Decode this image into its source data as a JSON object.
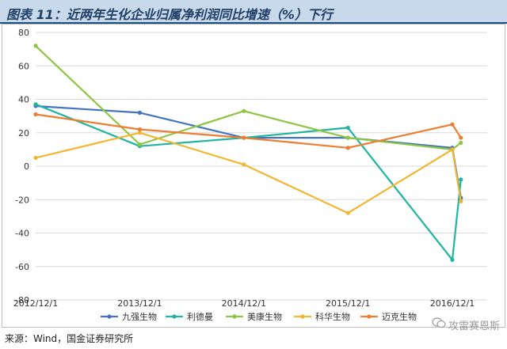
{
  "header": {
    "title": "图表 11：近两年生化企业归属净利润同比增速（%）下行"
  },
  "footer": {
    "source": "来源：Wind，国金证券研究所",
    "watermark": "攻雷赛恩斯"
  },
  "colors": {
    "title_bg": "#c8d9ec",
    "grid": "#d9d9d9"
  },
  "chart_data": {
    "type": "line",
    "title": "",
    "xlabel": "",
    "ylabel": "",
    "ylim": [
      -80,
      80
    ],
    "yticks": [
      -80,
      -60,
      -40,
      -20,
      0,
      20,
      40,
      60,
      80
    ],
    "grid": true,
    "legend_position": "bottom",
    "x_tick_labels": [
      "2012/12/1",
      "2013/12/1",
      "2014/12/1",
      "2015/12/1",
      "2016/12/1"
    ],
    "x": [
      "2012-12-01",
      "2013-12-01",
      "2014-12-01",
      "2015-12-01",
      "2016-12-01",
      "2016-12-31"
    ],
    "series": [
      {
        "name": "九强生物",
        "color": "#4472c4",
        "values": [
          36,
          32,
          17,
          17,
          11,
          -19
        ]
      },
      {
        "name": "利德曼",
        "color": "#1fb5a0",
        "values": [
          37,
          12,
          17,
          23,
          -56,
          -8
        ]
      },
      {
        "name": "美康生物",
        "color": "#8dc63f",
        "values": [
          72,
          13,
          33,
          17,
          10,
          14
        ]
      },
      {
        "name": "科华生物",
        "color": "#f2b632",
        "values": [
          5,
          20,
          1,
          -28,
          10,
          -21
        ]
      },
      {
        "name": "迈克生物",
        "color": "#ed7d31",
        "values": [
          31,
          22,
          17,
          11,
          25,
          17
        ]
      }
    ]
  }
}
